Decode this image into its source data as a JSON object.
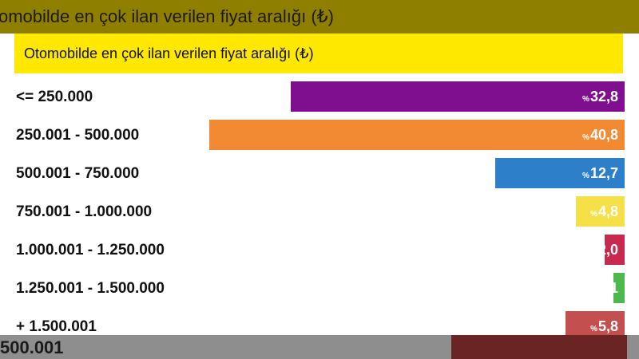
{
  "top_strip_text": "omobilde en çok ilan verilen fiyat aralığı (₺)",
  "bottom_strip_text": "500.001",
  "chart_data": {
    "type": "bar",
    "orientation": "horizontal",
    "title": "Otomobilde en çok ilan verilen fiyat aralığı (₺)",
    "categories": [
      "<= 250.000",
      "250.001 - 500.000",
      "500.001 - 750.000",
      "750.001 - 1.000.000",
      "1.000.001 - 1.250.000",
      "1.250.001 - 1.500.000",
      "+ 1.500.001"
    ],
    "values": [
      32.8,
      40.8,
      12.7,
      4.8,
      2.0,
      1.1,
      5.8
    ],
    "value_labels": [
      "32,8",
      "40,8",
      "12,7",
      "4,8",
      "2,0",
      "1,1",
      "5,8"
    ],
    "value_prefix": "%",
    "colors": [
      "#7f0f8f",
      "#f28a33",
      "#2e7fca",
      "#f5e048",
      "#c8294f",
      "#4db84e",
      "#c44f4f"
    ],
    "xlim": [
      0,
      40.8
    ],
    "bar_alignment": "right",
    "grid": false
  }
}
